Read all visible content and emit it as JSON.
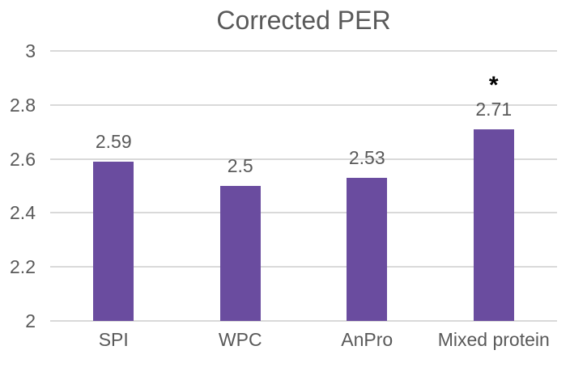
{
  "chart_data": {
    "type": "bar",
    "title": "Corrected PER",
    "categories": [
      "SPI",
      "WPC",
      "AnPro",
      "Mixed protein"
    ],
    "values": [
      2.59,
      2.5,
      2.53,
      2.71
    ],
    "data_labels": [
      "2.59",
      "2.5",
      "2.53",
      "2.71"
    ],
    "annotations": [
      "",
      "",
      "",
      "*"
    ],
    "ylim": [
      2,
      3
    ],
    "yticks": [
      "3",
      "2.8",
      "2.6",
      "2.4",
      "2.2",
      "2"
    ],
    "ytick_values": [
      3,
      2.8,
      2.6,
      2.4,
      2.2,
      2
    ],
    "xlabel": "",
    "ylabel": "",
    "grid": true,
    "legend": "none",
    "colors": {
      "bar": "#6A4C9F",
      "grid": "#D9D9D9",
      "axis_text": "#595959",
      "title_text": "#595959",
      "data_label_text": "#595959",
      "annotation_text": "#000000",
      "background": "#FFFFFF"
    }
  }
}
